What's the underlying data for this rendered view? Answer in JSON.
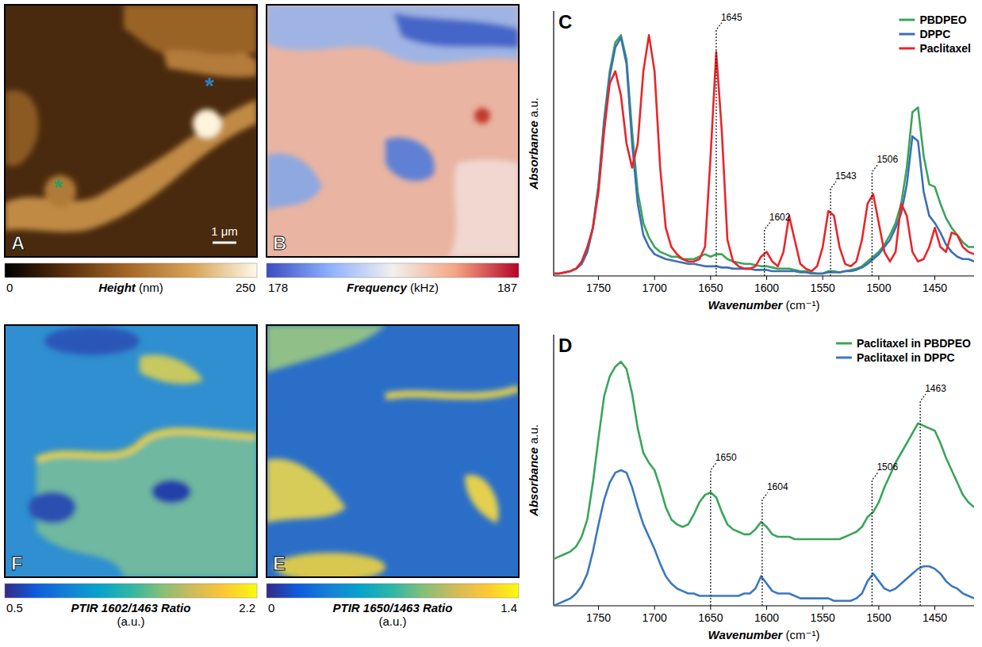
{
  "image_panels": [
    {
      "panel": "A",
      "colorbar": {
        "label": "Height (nm)",
        "min": 0,
        "max": 250
      },
      "scale_bar": "1 μm",
      "markers": [
        {
          "text": "*",
          "color": "#2e7fc0"
        },
        {
          "text": "*",
          "color": "#2ca05a"
        }
      ]
    },
    {
      "panel": "B",
      "colorbar": {
        "label": "Frequency (kHz)",
        "min": 178,
        "max": 187
      }
    },
    {
      "panel": "F",
      "colorbar": {
        "label": "PTIR 1602/1463 Ratio (a.u.)",
        "min": 0.5,
        "max": 2.2
      }
    },
    {
      "panel": "E",
      "colorbar": {
        "label": "PTIR 1650/1463 Ratio (a.u.)",
        "min": 0,
        "max": 1.4
      }
    }
  ],
  "chart_data": [
    {
      "type": "line",
      "panel": "C",
      "x_label": "Wavenumber (cm⁻¹)",
      "y_label": "Absorbance a.u.",
      "xlim": [
        1790,
        1415
      ],
      "xticks": [
        1750,
        1700,
        1650,
        1600,
        1550,
        1500,
        1450
      ],
      "ylim": [
        0,
        1.1
      ],
      "tick_labels": "x",
      "legend": "upper right",
      "annotations": [
        1645,
        1602,
        1543,
        1506
      ],
      "x": [
        1790,
        1785,
        1780,
        1775,
        1770,
        1765,
        1760,
        1755,
        1750,
        1745,
        1740,
        1735,
        1730,
        1725,
        1720,
        1715,
        1710,
        1705,
        1700,
        1695,
        1690,
        1685,
        1680,
        1675,
        1670,
        1665,
        1660,
        1655,
        1650,
        1645,
        1640,
        1635,
        1630,
        1625,
        1620,
        1615,
        1610,
        1605,
        1600,
        1595,
        1590,
        1585,
        1580,
        1575,
        1570,
        1565,
        1560,
        1555,
        1550,
        1545,
        1540,
        1535,
        1530,
        1525,
        1520,
        1515,
        1510,
        1505,
        1500,
        1495,
        1490,
        1485,
        1480,
        1475,
        1470,
        1465,
        1460,
        1455,
        1450,
        1445,
        1440,
        1435,
        1430,
        1425,
        1420,
        1415
      ],
      "series": [
        {
          "name": "PBDPEO",
          "color": "#3aa55a",
          "values": [
            0.01,
            0.01,
            0.015,
            0.02,
            0.03,
            0.05,
            0.1,
            0.2,
            0.38,
            0.65,
            0.85,
            0.97,
            1.0,
            0.9,
            0.6,
            0.35,
            0.22,
            0.16,
            0.12,
            0.1,
            0.09,
            0.08,
            0.08,
            0.07,
            0.07,
            0.07,
            0.08,
            0.09,
            0.08,
            0.09,
            0.09,
            0.07,
            0.06,
            0.055,
            0.05,
            0.05,
            0.045,
            0.04,
            0.04,
            0.035,
            0.03,
            0.03,
            0.03,
            0.025,
            0.02,
            0.02,
            0.015,
            0.01,
            0.01,
            0.02,
            0.02,
            0.015,
            0.02,
            0.025,
            0.03,
            0.04,
            0.06,
            0.08,
            0.1,
            0.13,
            0.17,
            0.22,
            0.3,
            0.45,
            0.68,
            0.7,
            0.5,
            0.38,
            0.37,
            0.3,
            0.24,
            0.2,
            0.17,
            0.14,
            0.12,
            0.12
          ]
        },
        {
          "name": "DPPC",
          "color": "#3d6fb5",
          "values": [
            0.01,
            0.01,
            0.015,
            0.02,
            0.03,
            0.05,
            0.1,
            0.2,
            0.37,
            0.63,
            0.83,
            0.95,
            0.99,
            0.88,
            0.55,
            0.3,
            0.17,
            0.12,
            0.09,
            0.08,
            0.07,
            0.065,
            0.06,
            0.055,
            0.05,
            0.05,
            0.045,
            0.04,
            0.04,
            0.04,
            0.035,
            0.035,
            0.03,
            0.03,
            0.03,
            0.03,
            0.025,
            0.025,
            0.025,
            0.02,
            0.02,
            0.02,
            0.02,
            0.02,
            0.015,
            0.015,
            0.01,
            0.01,
            0.01,
            0.015,
            0.015,
            0.015,
            0.02,
            0.02,
            0.025,
            0.035,
            0.05,
            0.07,
            0.09,
            0.12,
            0.15,
            0.2,
            0.26,
            0.38,
            0.58,
            0.56,
            0.35,
            0.25,
            0.22,
            0.18,
            0.13,
            0.1,
            0.08,
            0.07,
            0.07,
            0.06
          ]
        },
        {
          "name": "Paclitaxel",
          "color": "#e8262a",
          "values": [
            0.01,
            0.01,
            0.015,
            0.02,
            0.03,
            0.06,
            0.12,
            0.2,
            0.35,
            0.6,
            0.8,
            0.85,
            0.75,
            0.55,
            0.45,
            0.55,
            0.85,
            1.0,
            0.85,
            0.45,
            0.2,
            0.12,
            0.09,
            0.07,
            0.06,
            0.06,
            0.07,
            0.12,
            0.5,
            0.93,
            0.6,
            0.15,
            0.06,
            0.04,
            0.03,
            0.03,
            0.04,
            0.08,
            0.1,
            0.06,
            0.04,
            0.1,
            0.25,
            0.15,
            0.05,
            0.03,
            0.02,
            0.04,
            0.12,
            0.27,
            0.25,
            0.12,
            0.05,
            0.04,
            0.06,
            0.15,
            0.3,
            0.34,
            0.22,
            0.1,
            0.06,
            0.1,
            0.3,
            0.25,
            0.1,
            0.06,
            0.07,
            0.12,
            0.2,
            0.12,
            0.1,
            0.18,
            0.17,
            0.12,
            0.1,
            0.09
          ]
        }
      ]
    },
    {
      "type": "line",
      "panel": "D",
      "x_label": "Wavenumber (cm⁻¹)",
      "y_label": "Absorbance a.u.",
      "xlim": [
        1790,
        1415
      ],
      "xticks": [
        1750,
        1700,
        1650,
        1600,
        1550,
        1500,
        1450
      ],
      "ylim": [
        0,
        1.1
      ],
      "tick_labels": "x",
      "legend": "upper right",
      "annotations": [
        1650,
        1604,
        1506,
        1463
      ],
      "x": [
        1790,
        1785,
        1780,
        1775,
        1770,
        1765,
        1760,
        1755,
        1750,
        1745,
        1740,
        1735,
        1730,
        1725,
        1720,
        1715,
        1710,
        1705,
        1700,
        1695,
        1690,
        1685,
        1680,
        1675,
        1670,
        1665,
        1660,
        1655,
        1650,
        1645,
        1640,
        1635,
        1630,
        1625,
        1620,
        1615,
        1610,
        1605,
        1600,
        1595,
        1590,
        1585,
        1580,
        1575,
        1570,
        1565,
        1560,
        1555,
        1550,
        1545,
        1540,
        1535,
        1530,
        1525,
        1520,
        1515,
        1510,
        1505,
        1500,
        1495,
        1490,
        1485,
        1480,
        1475,
        1470,
        1465,
        1460,
        1455,
        1450,
        1445,
        1440,
        1435,
        1430,
        1425,
        1420,
        1415
      ],
      "series": [
        {
          "name": "Paclitaxel in PBDPEO",
          "color": "#3aa55a",
          "values": [
            0.19,
            0.2,
            0.21,
            0.22,
            0.24,
            0.28,
            0.35,
            0.5,
            0.68,
            0.85,
            0.93,
            0.97,
            0.99,
            0.96,
            0.86,
            0.72,
            0.62,
            0.58,
            0.55,
            0.48,
            0.4,
            0.35,
            0.33,
            0.32,
            0.33,
            0.37,
            0.42,
            0.45,
            0.46,
            0.44,
            0.38,
            0.33,
            0.31,
            0.3,
            0.29,
            0.29,
            0.31,
            0.34,
            0.32,
            0.29,
            0.28,
            0.28,
            0.28,
            0.27,
            0.27,
            0.27,
            0.27,
            0.27,
            0.27,
            0.27,
            0.27,
            0.27,
            0.28,
            0.29,
            0.3,
            0.32,
            0.36,
            0.38,
            0.42,
            0.48,
            0.53,
            0.58,
            0.62,
            0.66,
            0.7,
            0.74,
            0.73,
            0.72,
            0.71,
            0.66,
            0.6,
            0.55,
            0.5,
            0.45,
            0.42,
            0.4
          ]
        },
        {
          "name": "Paclitaxel in DPPC",
          "color": "#3b78c0",
          "values": [
            0,
            0.01,
            0.02,
            0.03,
            0.05,
            0.08,
            0.13,
            0.22,
            0.33,
            0.43,
            0.5,
            0.54,
            0.55,
            0.54,
            0.48,
            0.4,
            0.33,
            0.28,
            0.23,
            0.17,
            0.12,
            0.09,
            0.07,
            0.06,
            0.05,
            0.05,
            0.04,
            0.04,
            0.04,
            0.04,
            0.04,
            0.04,
            0.04,
            0.04,
            0.05,
            0.05,
            0.07,
            0.12,
            0.09,
            0.06,
            0.05,
            0.05,
            0.05,
            0.04,
            0.03,
            0.03,
            0.03,
            0.03,
            0.03,
            0.03,
            0.02,
            0.02,
            0.02,
            0.02,
            0.03,
            0.05,
            0.1,
            0.13,
            0.1,
            0.07,
            0.06,
            0.07,
            0.09,
            0.11,
            0.13,
            0.15,
            0.16,
            0.16,
            0.15,
            0.13,
            0.1,
            0.08,
            0.07,
            0.05,
            0.04,
            0.03
          ]
        }
      ]
    }
  ]
}
